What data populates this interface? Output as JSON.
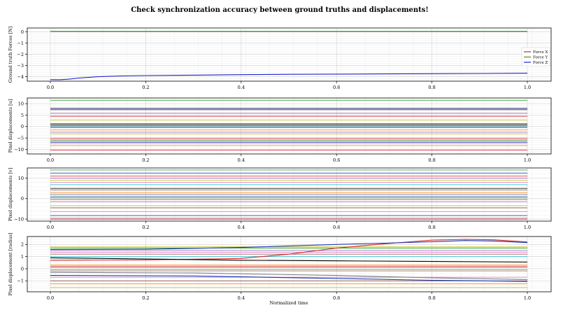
{
  "chart_data": {
    "title": "Check synchronization accuracy between ground truths and displacements!",
    "xlabel": "Normalized time",
    "xlim": [
      0,
      1
    ],
    "xticks": [
      "0.0",
      "0.2",
      "0.4",
      "0.6",
      "0.8",
      "1.0"
    ],
    "grid": true,
    "panels": [
      {
        "type": "line",
        "ylabel": "Ground truth Forces [N]",
        "ylim": [
          -4.4,
          0.35
        ],
        "yticks": [
          0,
          -1,
          -2,
          -3,
          -4
        ],
        "legend": "center-right",
        "series": [
          {
            "name": "Force X",
            "color": "#d62728",
            "x": [
              0,
              1
            ],
            "y": [
              0.03,
              0.03
            ]
          },
          {
            "name": "Force Y",
            "color": "#2ca02c",
            "x": [
              0,
              1
            ],
            "y": [
              0.05,
              0.05
            ]
          },
          {
            "name": "Force Z",
            "color": "#1f22c8",
            "x": [
              0,
              0.02,
              0.04,
              0.06,
              0.1,
              0.15,
              0.2,
              0.3,
              0.4,
              0.5,
              0.6,
              0.7,
              0.8,
              0.9,
              1.0
            ],
            "y": [
              -4.26,
              -4.27,
              -4.22,
              -4.12,
              -4.0,
              -3.93,
              -3.9,
              -3.86,
              -3.82,
              -3.79,
              -3.77,
              -3.75,
              -3.73,
              -3.71,
              -3.69
            ]
          }
        ]
      },
      {
        "type": "line",
        "ylabel": "Pixel displacements [u]",
        "ylim": [
          -12,
          12.5
        ],
        "yticks": [
          10,
          5,
          0,
          -5,
          -10
        ],
        "flat_levels": [
          11.5,
          8,
          7.6,
          7.3,
          5.8,
          4.5,
          2.8,
          1.2,
          0.8,
          0.6,
          0.3,
          -0.2,
          -0.4,
          -1.5,
          -2.5,
          -3.2,
          -5.1,
          -5.8,
          -6.3,
          -6.9,
          -7.4,
          -8.3,
          -10.3
        ],
        "colors": [
          "#2ca02c",
          "#1f3bb4",
          "#8c564b",
          "#7f7f7f",
          "#9467bd",
          "#d62728",
          "#bcbd22",
          "#000000",
          "#e377c2",
          "#2ca02c",
          "#1f77b4",
          "#17becf",
          "#8c564b",
          "#ff7f0e",
          "#9467bd",
          "#bcbd22",
          "#d62728",
          "#7f7f7f",
          "#2ca02c",
          "#1f3bb4",
          "#e377c2",
          "#ff7f0e",
          "#d62728"
        ]
      },
      {
        "type": "line",
        "ylabel": "Pixel displacements [v]",
        "ylim": [
          -11,
          15
        ],
        "yticks": [
          10,
          0,
          -10
        ],
        "flat_levels": [
          14,
          12.5,
          11,
          10,
          9,
          8,
          6.8,
          5,
          4.3,
          3,
          2.2,
          1.2,
          0.5,
          -0.4,
          -1.5,
          -3.4,
          -4.5,
          -6.4,
          -8.3,
          -9.6,
          -10.2
        ],
        "colors": [
          "#2ca02c",
          "#1f3bb4",
          "#d62728",
          "#9467bd",
          "#bcbd22",
          "#e377c2",
          "#17becf",
          "#000000",
          "#8c564b",
          "#ff7f0e",
          "#7f7f7f",
          "#1f77b4",
          "#2ca02c",
          "#d62728",
          "#9467bd",
          "#bcbd22",
          "#8c564b",
          "#e377c2",
          "#1f3bb4",
          "#d62728",
          "#7f7f7f"
        ]
      },
      {
        "type": "line",
        "ylabel": "Pixel displacement [radius]",
        "ylim": [
          -1.9,
          2.65
        ],
        "yticks": [
          2,
          1,
          0,
          -1
        ],
        "curves": [
          {
            "color": "#d62728",
            "x": [
              0,
              0.2,
              0.4,
              0.5,
              0.6,
              0.7,
              0.8,
              0.87,
              0.93,
              1.0
            ],
            "y": [
              0.7,
              0.72,
              0.85,
              1.2,
              1.7,
              2.05,
              2.35,
              2.42,
              2.38,
              2.2
            ]
          },
          {
            "color": "#1f3bb4",
            "x": [
              0,
              0.2,
              0.4,
              0.6,
              0.7,
              0.8,
              0.87,
              0.93,
              1.0
            ],
            "y": [
              1.58,
              1.6,
              1.75,
              2.0,
              2.1,
              2.22,
              2.32,
              2.28,
              2.15
            ]
          },
          {
            "color": "#000000",
            "x": [
              0,
              0.2,
              0.4,
              0.6,
              0.8,
              1.0
            ],
            "y": [
              0.9,
              0.8,
              0.7,
              0.65,
              0.6,
              0.55
            ]
          },
          {
            "color": "#7f7f7f",
            "x": [
              0,
              0.3,
              0.6,
              0.8,
              1.0
            ],
            "y": [
              -0.3,
              -0.35,
              -0.55,
              -0.75,
              -0.9
            ]
          },
          {
            "color": "#1f3bb4",
            "x": [
              0,
              0.3,
              0.6,
              0.8,
              1.0
            ],
            "y": [
              -0.55,
              -0.6,
              -0.8,
              -0.95,
              -1.05
            ]
          }
        ],
        "flat_levels": [
          1.8,
          1.7,
          1.5,
          1.35,
          1.2,
          1.0,
          0.3,
          0.2,
          0.1,
          -0.1,
          -0.2,
          -0.7,
          -1.0,
          -1.25,
          -1.55
        ],
        "colors": [
          "#bcbd22",
          "#2ca02c",
          "#9467bd",
          "#e377c2",
          "#8c564b",
          "#17becf",
          "#ff7f0e",
          "#d62728",
          "#2ca02c",
          "#9467bd",
          "#bcbd22",
          "#e377c2",
          "#8c564b",
          "#ff7f0e",
          "#bcbd22"
        ]
      }
    ]
  }
}
